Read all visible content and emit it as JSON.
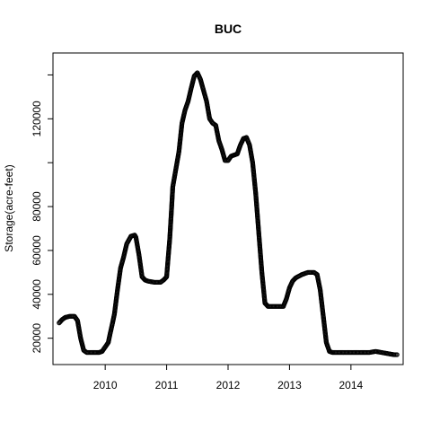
{
  "chart_data": {
    "type": "scatter",
    "title": "BUC",
    "xlabel": "",
    "ylabel": "Storage(acre-feet)",
    "xlim": [
      2009.15,
      2014.85
    ],
    "ylim": [
      8000,
      150000
    ],
    "x_ticks": [
      2010,
      2011,
      2012,
      2013,
      2014
    ],
    "x_tick_labels": [
      "2010",
      "2011",
      "2012",
      "2013",
      "2014"
    ],
    "y_ticks": [
      20000,
      40000,
      60000,
      80000,
      100000,
      120000,
      140000
    ],
    "y_tick_labels": [
      "20000",
      "40000",
      "60000",
      "80000",
      "",
      "120000",
      ""
    ],
    "grid": false,
    "legend": "none",
    "marker": "open-circle",
    "color": "#000000",
    "series": [
      {
        "x": [
          2009.25,
          2009.3,
          2009.35,
          2009.42,
          2009.5,
          2009.55,
          2009.6,
          2009.65,
          2009.7,
          2009.8,
          2009.9,
          2009.95,
          2010.0,
          2010.05,
          2010.08,
          2010.12,
          2010.15,
          2010.2,
          2010.25,
          2010.3,
          2010.35,
          2010.42,
          2010.48,
          2010.5,
          2010.55,
          2010.6,
          2010.65,
          2010.7,
          2010.8,
          2010.9,
          2010.95,
          2011.0,
          2011.02,
          2011.05,
          2011.08,
          2011.1,
          2011.15,
          2011.2,
          2011.25,
          2011.3,
          2011.35,
          2011.4,
          2011.45,
          2011.5,
          2011.55,
          2011.6,
          2011.65,
          2011.7,
          2011.75,
          2011.8,
          2011.85,
          2011.9,
          2011.95,
          2012.0,
          2012.05,
          2012.1,
          2012.15,
          2012.2,
          2012.25,
          2012.3,
          2012.35,
          2012.4,
          2012.45,
          2012.5,
          2012.55,
          2012.6,
          2012.65,
          2012.7,
          2012.8,
          2012.9,
          2012.95,
          2013.0,
          2013.05,
          2013.1,
          2013.2,
          2013.3,
          2013.35,
          2013.4,
          2013.45,
          2013.5,
          2013.55,
          2013.6,
          2013.65,
          2013.7,
          2013.8,
          2013.9,
          2014.0,
          2014.1,
          2014.2,
          2014.3,
          2014.4,
          2014.5,
          2014.6,
          2014.7,
          2014.75
        ],
        "y": [
          27000,
          28500,
          29500,
          30000,
          30000,
          28000,
          20000,
          14500,
          13500,
          13500,
          13500,
          14000,
          16000,
          18000,
          22000,
          27000,
          31000,
          42000,
          52000,
          57000,
          63000,
          66500,
          67000,
          66000,
          58000,
          48000,
          46500,
          46000,
          45500,
          45500,
          46500,
          48000,
          55000,
          65000,
          79000,
          89000,
          97000,
          105000,
          118000,
          124000,
          128000,
          134000,
          139500,
          141000,
          138000,
          133000,
          128000,
          120000,
          118000,
          117000,
          110000,
          106000,
          101000,
          101000,
          103000,
          103500,
          104000,
          108000,
          111000,
          111500,
          108000,
          100000,
          86000,
          68000,
          50000,
          36000,
          34500,
          34500,
          34500,
          34500,
          38000,
          43000,
          46000,
          47500,
          49000,
          50000,
          50000,
          50000,
          49000,
          42000,
          30000,
          18000,
          14000,
          13500,
          13500,
          13500,
          13500,
          13500,
          13500,
          13500,
          14000,
          13500,
          13000,
          12500,
          12500
        ]
      }
    ]
  }
}
